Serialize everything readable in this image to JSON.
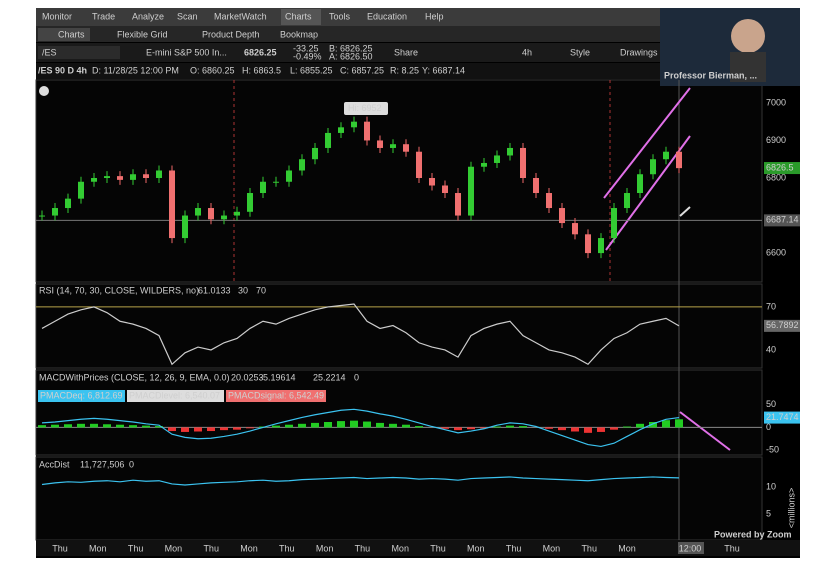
{
  "menu": [
    "Monitor",
    "Trade",
    "Analyze",
    "Scan",
    "MarketWatch",
    "Charts",
    "Tools",
    "Education",
    "Help"
  ],
  "toolbar": [
    "Charts",
    "Flexible Grid",
    "Product Depth",
    "Bookmap"
  ],
  "symbol_bar": {
    "symbol": "/ES",
    "description": "E-mini S&P 500 In...",
    "last": "6826.25",
    "change": "-33.25",
    "change_pct": "-0.49%",
    "bid": "B: 6826.25",
    "ask": "A: 6826.50",
    "share": "Share",
    "interval": "4h",
    "style": "Style",
    "drawings": "Drawings"
  },
  "info_bar": [
    "/ES 90 D 4h",
    "D: 11/28/25 12:00 PM",
    "O: 6860.25",
    "H: 6863.5",
    "L: 6855.25",
    "C: 6857.25",
    "R: 8.25",
    "Y: 6687.14"
  ],
  "video": {
    "name": "Professor Bierman, ...",
    "footer": "Powered by Zoom"
  },
  "price_chart": {
    "high_label": "Hi: 6952",
    "ylim": [
      6523,
      7061
    ],
    "yticks": [
      6600,
      6800,
      6900,
      7000
    ],
    "last_price": 6826.5,
    "prev_close": 6687.14,
    "closes": [
      6700,
      6720,
      6745,
      6790,
      6800,
      6805,
      6795,
      6810,
      6800,
      6820,
      6640,
      6700,
      6720,
      6690,
      6700,
      6710,
      6760,
      6790,
      6790,
      6820,
      6850,
      6880,
      6920,
      6935,
      6950,
      6900,
      6880,
      6890,
      6870,
      6800,
      6780,
      6760,
      6700,
      6830,
      6840,
      6860,
      6880,
      6800,
      6760,
      6720,
      6680,
      6650,
      6600,
      6640,
      6720,
      6760,
      6810,
      6850,
      6870,
      6826.25
    ]
  },
  "rsi": {
    "header": "RSI (14, 70, 30, CLOSE, WILDERS, no)",
    "readout": "61.0133",
    "low": "30",
    "high": "70",
    "ylim": [
      27.4,
      86
    ],
    "yticks": [
      40,
      70
    ],
    "last": 56.7892,
    "values": [
      55,
      60,
      65,
      68,
      70,
      66,
      60,
      58,
      55,
      50,
      30,
      38,
      42,
      40,
      45,
      48,
      55,
      60,
      58,
      62,
      65,
      68,
      70,
      71,
      72,
      60,
      55,
      57,
      52,
      45,
      42,
      40,
      35,
      50,
      55,
      58,
      60,
      50,
      45,
      40,
      38,
      35,
      30,
      40,
      48,
      52,
      58,
      60,
      62,
      56.79
    ]
  },
  "macd": {
    "header": "MACDWithPrices (CLOSE, 12, 26, 9, EMA, 0.0)",
    "readouts": [
      "20.0253",
      "-5.19614",
      "25.2214",
      "0"
    ],
    "chips": [
      "PMACDeq: 6,812.69",
      "PMACDlevel: 6,540.07",
      "PMACDsignal: 6,542.49"
    ],
    "ylim": [
      -61,
      127
    ],
    "yticks": [
      -50,
      0,
      50
    ],
    "last": 21.7474,
    "histogram": [
      5,
      6,
      7,
      8,
      8,
      7,
      6,
      5,
      4,
      3,
      -8,
      -10,
      -9,
      -8,
      -6,
      -5,
      -2,
      2,
      4,
      6,
      8,
      10,
      12,
      14,
      15,
      13,
      10,
      8,
      6,
      3,
      0,
      -3,
      -6,
      -4,
      -2,
      2,
      4,
      3,
      0,
      -3,
      -6,
      -9,
      -12,
      -10,
      -5,
      2,
      8,
      12,
      16,
      18
    ],
    "line": [
      10,
      12,
      15,
      18,
      20,
      18,
      15,
      12,
      8,
      5,
      -15,
      -22,
      -25,
      -24,
      -20,
      -15,
      -8,
      0,
      8,
      15,
      22,
      28,
      33,
      38,
      40,
      36,
      30,
      25,
      18,
      10,
      2,
      -5,
      -12,
      -8,
      -3,
      5,
      10,
      8,
      2,
      -8,
      -18,
      -28,
      -38,
      -42,
      -35,
      -20,
      -5,
      8,
      18,
      21.75
    ]
  },
  "accdist": {
    "header": "AccDist",
    "readout": "11,727,506",
    "zero": "0",
    "unit": "<millions>",
    "ylim": [
      0.2,
      15.6
    ],
    "yticks": [
      5,
      10
    ],
    "values": [
      10.5,
      10.8,
      11,
      10.9,
      11.1,
      11.2,
      11,
      11.3,
      11.1,
      11.2,
      10.6,
      10.4,
      10.6,
      10.8,
      10.9,
      11,
      11.2,
      11.3,
      11.1,
      11.2,
      11.4,
      11.5,
      11.6,
      11.7,
      11.8,
      11.6,
      11.7,
      11.8,
      11.7,
      11.5,
      11.6,
      11.5,
      11.3,
      11.6,
      11.7,
      11.8,
      11.9,
      11.7,
      11.6,
      11.5,
      11.4,
      11.3,
      11.2,
      11.4,
      11.6,
      11.7,
      11.8,
      11.9,
      11.8,
      11.73
    ]
  },
  "time_axis": [
    "Thu",
    "Mon",
    "Thu",
    "Mon",
    "Thu",
    "Mon",
    "Thu",
    "Mon",
    "Thu",
    "Mon",
    "Thu",
    "Mon",
    "Thu",
    "Mon",
    "Thu",
    "Mon",
    "12:00",
    "Thu"
  ]
}
